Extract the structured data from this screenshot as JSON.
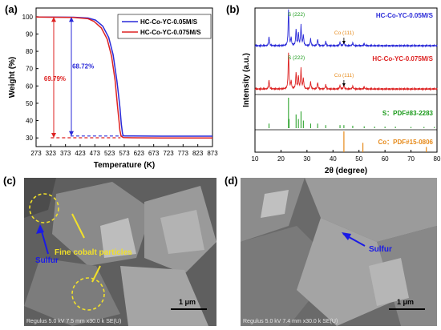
{
  "panels": {
    "a": "(a)",
    "b": "(b)",
    "c": "(c)",
    "d": "(d)"
  },
  "colors": {
    "blue": "#2a2ad8",
    "red": "#dd2222",
    "green": "#1a9a1a",
    "orange": "#e68a1a",
    "yellow": "#f1e02a",
    "annotationBlue": "#1a1ae6"
  },
  "chart_data": [
    {
      "type": "line",
      "panel": "a",
      "xlabel": "Temperature (K)",
      "ylabel": "Weight (%)",
      "xlim": [
        273,
        873
      ],
      "ylim": [
        25,
        105
      ],
      "xticks": [
        "273",
        "323",
        "373",
        "423",
        "473",
        "523",
        "573",
        "623",
        "673",
        "723",
        "773",
        "823",
        "873"
      ],
      "yticks": [
        "30",
        "40",
        "50",
        "60",
        "70",
        "80",
        "90",
        "100"
      ],
      "legend_position": "top-right",
      "series": [
        {
          "name": "HC-Co-YC-0.05M/S",
          "color": "#2a2ad8",
          "x": [
            273,
            400,
            450,
            475,
            500,
            520,
            535,
            548,
            558,
            563,
            567,
            570,
            575,
            600,
            700,
            873
          ],
          "y": [
            99.8,
            99.7,
            99.2,
            98.0,
            94.5,
            88.0,
            78.0,
            63.0,
            48.0,
            38.0,
            32.5,
            31.2,
            31.1,
            31.1,
            31.0,
            31.0
          ]
        },
        {
          "name": "HC-Co-YC-0.075M/S",
          "color": "#dd2222",
          "x": [
            273,
            400,
            450,
            470,
            495,
            515,
            530,
            542,
            550,
            555,
            558,
            562,
            570,
            600,
            700,
            873
          ],
          "y": [
            99.8,
            99.6,
            98.8,
            97.3,
            93.5,
            87.0,
            77.0,
            63.0,
            48.0,
            40.0,
            34.5,
            31.0,
            30.2,
            30.1,
            30.0,
            30.0
          ]
        }
      ],
      "annotations": [
        {
          "text": "69.79%",
          "color": "#dd2222"
        },
        {
          "text": "68.72%",
          "color": "#2a2ad8"
        }
      ]
    },
    {
      "type": "line",
      "panel": "b",
      "xlabel": "2θ (degree)",
      "ylabel": "Intensity (a.u.)",
      "xlim": [
        10,
        80
      ],
      "xticks": [
        "10",
        "20",
        "30",
        "40",
        "50",
        "60",
        "70",
        "80"
      ],
      "series": [
        {
          "name": "HC-Co-YC-0.05M/S",
          "color": "#2a2ad8",
          "peaks": [
            [
              15.4,
              0.25
            ],
            [
              22.9,
              1.0
            ],
            [
              23.9,
              0.22
            ],
            [
              25.8,
              0.45
            ],
            [
              26.7,
              0.35
            ],
            [
              27.7,
              0.55
            ],
            [
              28.6,
              0.3
            ],
            [
              31.4,
              0.2
            ],
            [
              34.1,
              0.18
            ],
            [
              37.2,
              0.12
            ],
            [
              42.7,
              0.1
            ],
            [
              44.2,
              0.12
            ],
            [
              47.6,
              0.08
            ],
            [
              52.0,
              0.06
            ]
          ]
        },
        {
          "name": "HC-Co-YC-0.075M/S",
          "color": "#dd2222",
          "peaks": [
            [
              15.4,
              0.25
            ],
            [
              22.9,
              1.0
            ],
            [
              23.9,
              0.22
            ],
            [
              25.8,
              0.45
            ],
            [
              26.7,
              0.35
            ],
            [
              27.7,
              0.55
            ],
            [
              28.6,
              0.3
            ],
            [
              31.4,
              0.2
            ],
            [
              34.1,
              0.18
            ],
            [
              37.2,
              0.12
            ],
            [
              42.7,
              0.1
            ],
            [
              44.2,
              0.12
            ],
            [
              47.6,
              0.08
            ],
            [
              52.0,
              0.06
            ]
          ]
        },
        {
          "name": "S：PDF#83-2283",
          "color": "#1a9a1a",
          "sticks": [
            [
              15.4,
              0.15
            ],
            [
              22.9,
              1.0
            ],
            [
              23.1,
              0.3
            ],
            [
              25.8,
              0.45
            ],
            [
              26.7,
              0.3
            ],
            [
              27.7,
              0.55
            ],
            [
              28.6,
              0.25
            ],
            [
              31.4,
              0.15
            ],
            [
              34.1,
              0.15
            ],
            [
              37.2,
              0.1
            ],
            [
              42.7,
              0.1
            ],
            [
              44.2,
              0.1
            ],
            [
              47.6,
              0.08
            ],
            [
              52.0,
              0.06
            ],
            [
              56.0,
              0.05
            ],
            [
              60.0,
              0.05
            ],
            [
              64.0,
              0.05
            ],
            [
              70.0,
              0.04
            ],
            [
              75.0,
              0.04
            ],
            [
              79.0,
              0.04
            ]
          ]
        },
        {
          "name": "Co：PDF#15-0806",
          "color": "#e68a1a",
          "sticks": [
            [
              44.2,
              1.0
            ],
            [
              51.5,
              0.45
            ],
            [
              75.9,
              0.25
            ]
          ]
        }
      ],
      "peak_labels": [
        {
          "text": "S (222)",
          "color": "#1a9a1a"
        },
        {
          "text": "Co (111)",
          "color": "#e68a1a"
        },
        {
          "text": "S (222)",
          "color": "#1a9a1a"
        },
        {
          "text": "Co (111)",
          "color": "#e68a1a"
        }
      ]
    }
  ],
  "sem_c": {
    "label_sulfur": "Sulfur",
    "label_cobalt": "Fine cobalt particles",
    "scale": "1 μm",
    "footer": "Regulus 5.0 kV 7.5 mm x30.0 k SE(U)"
  },
  "sem_d": {
    "label_sulfur": "Sulfur",
    "scale": "1 μm",
    "footer": "Regulus 5.0 kV 7.4 mm x30.0 k SE(U)"
  }
}
